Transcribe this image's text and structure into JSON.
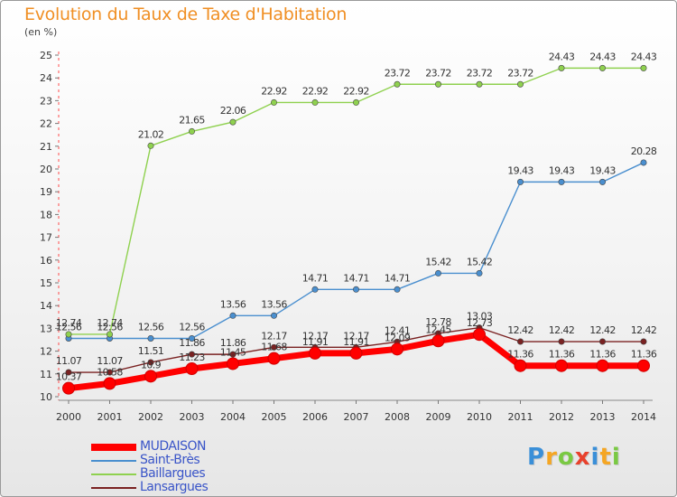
{
  "chart_data": {
    "type": "line",
    "title": "Evolution du Taux de Taxe d'Habitation",
    "unit_label": "(en %)",
    "x": [
      "2000",
      "2001",
      "2002",
      "2003",
      "2004",
      "2005",
      "2006",
      "2007",
      "2008",
      "2009",
      "2010",
      "2011",
      "2012",
      "2013",
      "2014"
    ],
    "ylim": [
      10,
      25
    ],
    "yticks": [
      10,
      11,
      12,
      13,
      14,
      15,
      16,
      17,
      18,
      19,
      20,
      21,
      22,
      23,
      24,
      25
    ],
    "grid": false,
    "legend_position": "bottom-left",
    "series": [
      {
        "name": "MUDAISON",
        "color": "#ff0000",
        "emphasis": true,
        "values": [
          10.37,
          10.58,
          10.9,
          11.23,
          11.45,
          11.68,
          11.91,
          11.91,
          12.09,
          12.45,
          12.73,
          11.36,
          11.36,
          11.36,
          11.36
        ],
        "labels": [
          "10.37",
          "10.58",
          "10.9",
          "11.23",
          "11.45",
          "11.68",
          "11.91",
          "11.91",
          "12.09",
          "12.45",
          "12.73",
          "11.36",
          "11.36",
          "11.36",
          "11.36"
        ]
      },
      {
        "name": "Saint-Brès",
        "color": "#4a8fcf",
        "values": [
          12.56,
          12.56,
          12.56,
          12.56,
          13.56,
          13.56,
          14.71,
          14.71,
          14.71,
          15.42,
          15.42,
          19.43,
          19.43,
          19.43,
          20.28
        ],
        "labels": [
          "12.56",
          "12.56",
          "12.56",
          "12.56",
          "13.56",
          "13.56",
          "14.71",
          "14.71",
          "14.71",
          "15.42",
          "15.42",
          "19.43",
          "19.43",
          "19.43",
          "20.28"
        ]
      },
      {
        "name": "Baillargues",
        "color": "#8fd14f",
        "values": [
          12.74,
          12.74,
          21.02,
          21.65,
          22.06,
          22.92,
          22.92,
          22.92,
          23.72,
          23.72,
          23.72,
          23.72,
          24.43,
          24.43,
          24.43
        ],
        "labels": [
          "12.74",
          "12.74",
          "21.02",
          "21.65",
          "22.06",
          "22.92",
          "22.92",
          "22.92",
          "23.72",
          "23.72",
          "23.72",
          "23.72",
          "24.43",
          "24.43",
          "24.43"
        ]
      },
      {
        "name": "Lansargues",
        "color": "#7a2222",
        "values": [
          11.07,
          11.07,
          11.51,
          11.86,
          11.86,
          12.17,
          12.17,
          12.17,
          12.41,
          12.78,
          13.03,
          12.42,
          12.42,
          12.42,
          12.42
        ],
        "labels": [
          "11.07",
          "11.07",
          "11.51",
          "11.86",
          "11.86",
          "12.17",
          "12.17",
          "12.17",
          "12.41",
          "12.78",
          "13.03",
          "12.42",
          "12.42",
          "12.42",
          "12.42"
        ]
      }
    ]
  },
  "branding": {
    "logo_letters": [
      "P",
      "r",
      "o",
      "x",
      "i",
      "t",
      "i"
    ],
    "logo_colors": [
      "#3a8fd8",
      "#f5a623",
      "#7ac943",
      "#e8412c",
      "#3a8fd8",
      "#f5a623",
      "#7ac943"
    ]
  }
}
